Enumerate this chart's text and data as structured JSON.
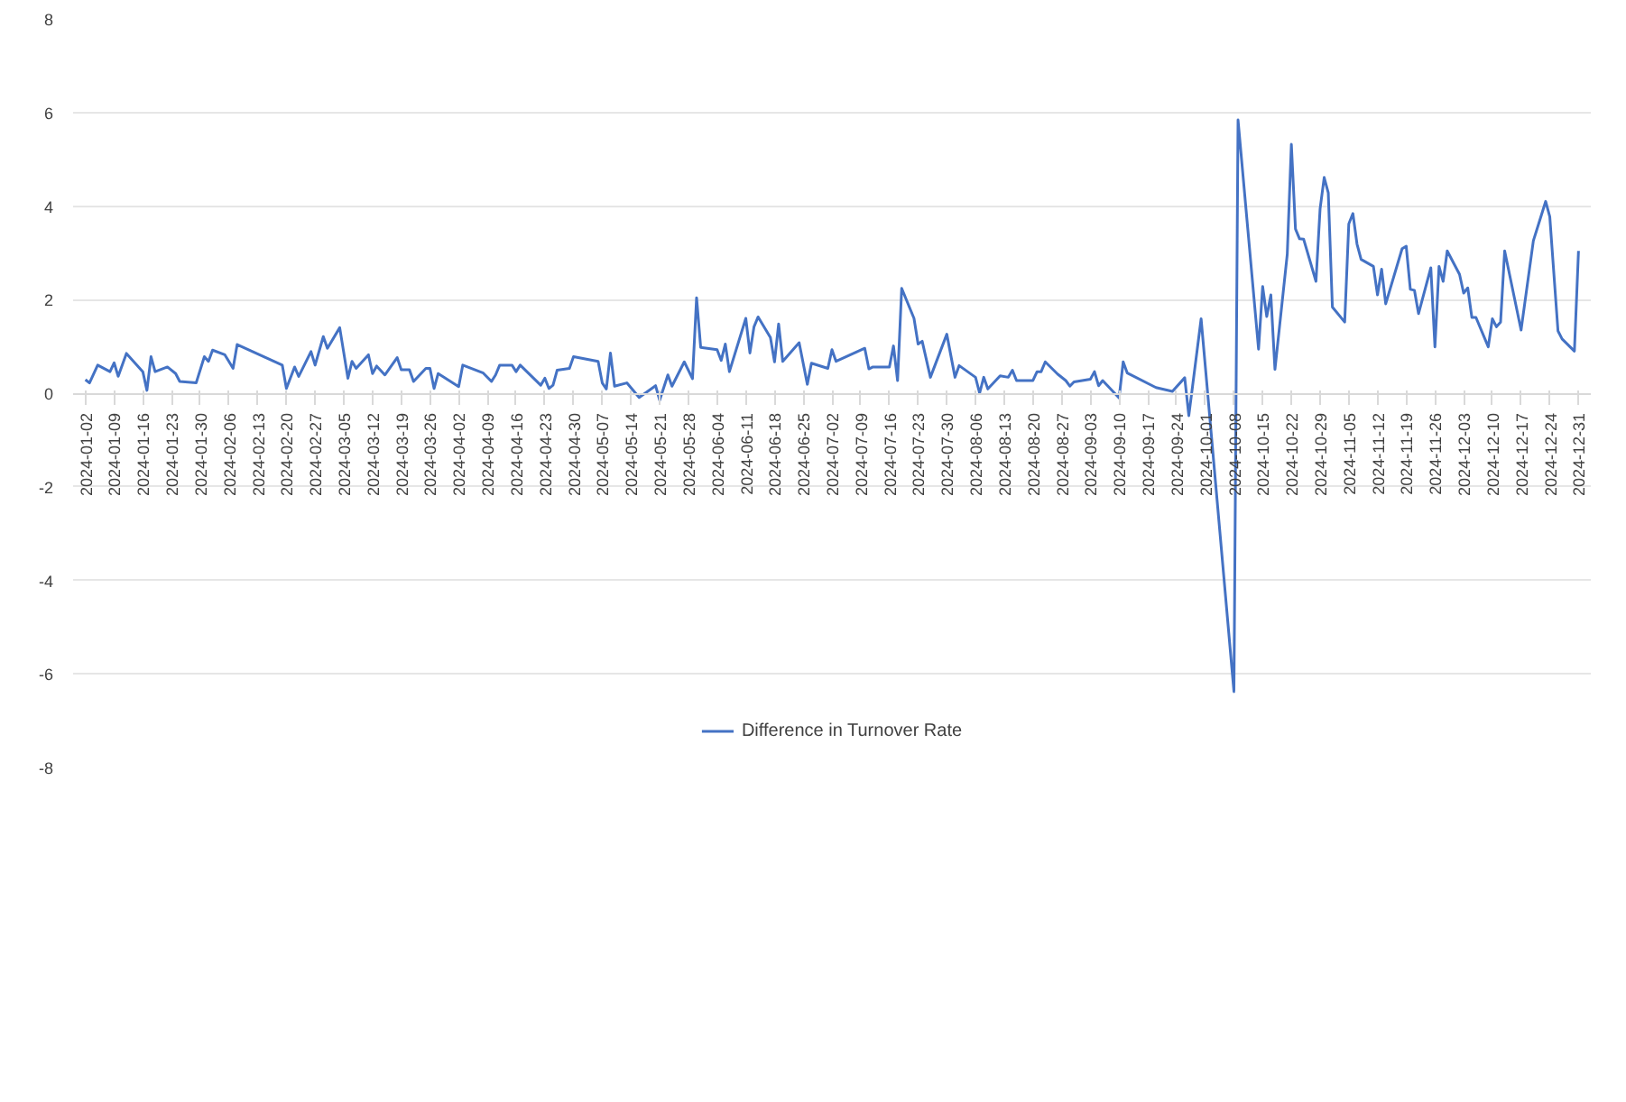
{
  "chart_data": {
    "type": "line",
    "grid": "y",
    "legend": "bottom",
    "line_style": "solid",
    "xlim": [
      "2023-12-30",
      "2025-01-03"
    ],
    "ylim": [
      -8,
      8
    ],
    "yticks": [
      -8,
      -6,
      -4,
      -2,
      0,
      2,
      4,
      6,
      8
    ],
    "xticks": [
      "2024-01-02",
      "2024-01-09",
      "2024-01-16",
      "2024-01-23",
      "2024-01-30",
      "2024-02-06",
      "2024-02-13",
      "2024-02-20",
      "2024-02-27",
      "2024-03-05",
      "2024-03-12",
      "2024-03-19",
      "2024-03-26",
      "2024-04-02",
      "2024-04-09",
      "2024-04-16",
      "2024-04-23",
      "2024-04-30",
      "2024-05-07",
      "2024-05-14",
      "2024-05-21",
      "2024-05-28",
      "2024-06-04",
      "2024-06-11",
      "2024-06-18",
      "2024-06-25",
      "2024-07-02",
      "2024-07-09",
      "2024-07-16",
      "2024-07-23",
      "2024-07-30",
      "2024-08-06",
      "2024-08-13",
      "2024-08-20",
      "2024-08-27",
      "2024-09-03",
      "2024-09-10",
      "2024-09-17",
      "2024-09-24",
      "2024-10-01",
      "2024-10-08",
      "2024-10-15",
      "2024-10-22",
      "2024-10-29",
      "2024-11-05",
      "2024-11-12",
      "2024-11-19",
      "2024-11-26",
      "2024-12-03",
      "2024-12-10",
      "2024-12-17",
      "2024-12-24",
      "2024-12-31"
    ],
    "x": [
      "2024-01-02",
      "2024-01-03",
      "2024-01-05",
      "2024-01-08",
      "2024-01-09",
      "2024-01-10",
      "2024-01-12",
      "2024-01-16",
      "2024-01-17",
      "2024-01-18",
      "2024-01-19",
      "2024-01-22",
      "2024-01-24",
      "2024-01-25",
      "2024-01-29",
      "2024-01-31",
      "2024-02-01",
      "2024-02-02",
      "2024-02-05",
      "2024-02-07",
      "2024-02-08",
      "2024-02-19",
      "2024-02-20",
      "2024-02-22",
      "2024-02-23",
      "2024-02-26",
      "2024-02-27",
      "2024-02-29",
      "2024-03-01",
      "2024-03-04",
      "2024-03-06",
      "2024-03-07",
      "2024-03-08",
      "2024-03-11",
      "2024-03-12",
      "2024-03-13",
      "2024-03-15",
      "2024-03-18",
      "2024-03-19",
      "2024-03-21",
      "2024-03-22",
      "2024-03-25",
      "2024-03-26",
      "2024-03-27",
      "2024-03-28",
      "2024-04-02",
      "2024-04-03",
      "2024-04-08",
      "2024-04-10",
      "2024-04-11",
      "2024-04-12",
      "2024-04-15",
      "2024-04-16",
      "2024-04-17",
      "2024-04-22",
      "2024-04-23",
      "2024-04-24",
      "2024-04-25",
      "2024-04-26",
      "2024-04-29",
      "2024-04-30",
      "2024-05-06",
      "2024-05-07",
      "2024-05-08",
      "2024-05-09",
      "2024-05-10",
      "2024-05-13",
      "2024-05-16",
      "2024-05-20",
      "2024-05-21",
      "2024-05-23",
      "2024-05-24",
      "2024-05-27",
      "2024-05-29",
      "2024-05-30",
      "2024-05-31",
      "2024-06-04",
      "2024-06-05",
      "2024-06-06",
      "2024-06-07",
      "2024-06-11",
      "2024-06-12",
      "2024-06-13",
      "2024-06-14",
      "2024-06-17",
      "2024-06-18",
      "2024-06-19",
      "2024-06-20",
      "2024-06-24",
      "2024-06-26",
      "2024-06-27",
      "2024-07-01",
      "2024-07-02",
      "2024-07-03",
      "2024-07-10",
      "2024-07-11",
      "2024-07-12",
      "2024-07-16",
      "2024-07-17",
      "2024-07-18",
      "2024-07-19",
      "2024-07-22",
      "2024-07-23",
      "2024-07-24",
      "2024-07-26",
      "2024-07-30",
      "2024-08-01",
      "2024-08-02",
      "2024-08-06",
      "2024-08-07",
      "2024-08-08",
      "2024-08-09",
      "2024-08-12",
      "2024-08-14",
      "2024-08-15",
      "2024-08-16",
      "2024-08-20",
      "2024-08-21",
      "2024-08-22",
      "2024-08-23",
      "2024-08-26",
      "2024-08-28",
      "2024-08-29",
      "2024-08-30",
      "2024-09-03",
      "2024-09-04",
      "2024-09-05",
      "2024-09-06",
      "2024-09-10",
      "2024-09-11",
      "2024-09-12",
      "2024-09-19",
      "2024-09-23",
      "2024-09-26",
      "2024-09-27",
      "2024-09-30",
      "2024-10-08",
      "2024-10-09",
      "2024-10-14",
      "2024-10-15",
      "2024-10-16",
      "2024-10-17",
      "2024-10-18",
      "2024-10-21",
      "2024-10-22",
      "2024-10-23",
      "2024-10-24",
      "2024-10-25",
      "2024-10-28",
      "2024-10-29",
      "2024-10-30",
      "2024-10-31",
      "2024-11-01",
      "2024-11-04",
      "2024-11-05",
      "2024-11-06",
      "2024-11-07",
      "2024-11-08",
      "2024-11-11",
      "2024-11-12",
      "2024-11-13",
      "2024-11-14",
      "2024-11-18",
      "2024-11-19",
      "2024-11-20",
      "2024-11-21",
      "2024-11-22",
      "2024-11-25",
      "2024-11-26",
      "2024-11-27",
      "2024-11-28",
      "2024-11-29",
      "2024-12-02",
      "2024-12-03",
      "2024-12-04",
      "2024-12-05",
      "2024-12-06",
      "2024-12-09",
      "2024-12-10",
      "2024-12-11",
      "2024-12-12",
      "2024-12-13",
      "2024-12-17",
      "2024-12-20",
      "2024-12-23",
      "2024-12-24",
      "2024-12-26",
      "2024-12-27",
      "2024-12-30",
      "2024-12-31"
    ],
    "series": [
      {
        "name": "Difference in Turnover Rate",
        "color": "#4472c4",
        "values": [
          0.29,
          0.22,
          0.6,
          0.46,
          0.65,
          0.36,
          0.85,
          0.46,
          0.06,
          0.78,
          0.46,
          0.56,
          0.42,
          0.25,
          0.22,
          0.78,
          0.68,
          0.92,
          0.82,
          0.53,
          1.04,
          0.6,
          0.1,
          0.56,
          0.36,
          0.89,
          0.6,
          1.21,
          0.96,
          1.4,
          0.32,
          0.68,
          0.53,
          0.82,
          0.42,
          0.58,
          0.39,
          0.76,
          0.5,
          0.5,
          0.25,
          0.53,
          0.53,
          0.1,
          0.42,
          0.14,
          0.6,
          0.43,
          0.25,
          0.39,
          0.6,
          0.6,
          0.46,
          0.6,
          0.17,
          0.32,
          0.1,
          0.17,
          0.49,
          0.53,
          0.78,
          0.68,
          0.22,
          0.09,
          0.86,
          0.15,
          0.22,
          -0.09,
          0.16,
          -0.15,
          0.39,
          0.15,
          0.67,
          0.31,
          2.04,
          0.98,
          0.93,
          0.7,
          1.05,
          0.46,
          1.6,
          0.86,
          1.42,
          1.63,
          1.19,
          0.67,
          1.48,
          0.68,
          1.08,
          0.19,
          0.64,
          0.53,
          0.93,
          0.68,
          0.96,
          0.52,
          0.56,
          0.56,
          1.01,
          0.27,
          2.24,
          1.6,
          1.05,
          1.11,
          0.34,
          1.26,
          0.34,
          0.59,
          0.34,
          0.0,
          0.34,
          0.09,
          0.37,
          0.34,
          0.49,
          0.27,
          0.27,
          0.46,
          0.46,
          0.67,
          0.41,
          0.27,
          0.15,
          0.24,
          0.3,
          0.46,
          0.16,
          0.27,
          -0.1,
          0.67,
          0.43,
          0.12,
          0.04,
          0.33,
          -0.48,
          1.59,
          -6.38,
          5.84,
          0.94,
          2.28,
          1.64,
          2.1,
          0.51,
          2.97,
          5.32,
          3.51,
          3.3,
          3.29,
          2.39,
          3.94,
          4.61,
          4.28,
          1.84,
          1.52,
          3.62,
          3.84,
          3.19,
          2.86,
          2.71,
          2.1,
          2.65,
          1.91,
          3.09,
          3.14,
          2.22,
          2.2,
          1.7,
          2.68,
          0.99,
          2.71,
          2.39,
          3.04,
          2.54,
          2.14,
          2.25,
          1.62,
          1.62,
          0.99,
          1.59,
          1.42,
          1.52,
          3.04,
          1.35,
          3.26,
          4.1,
          3.77,
          1.33,
          1.16,
          0.9,
          3.04
        ]
      }
    ]
  }
}
